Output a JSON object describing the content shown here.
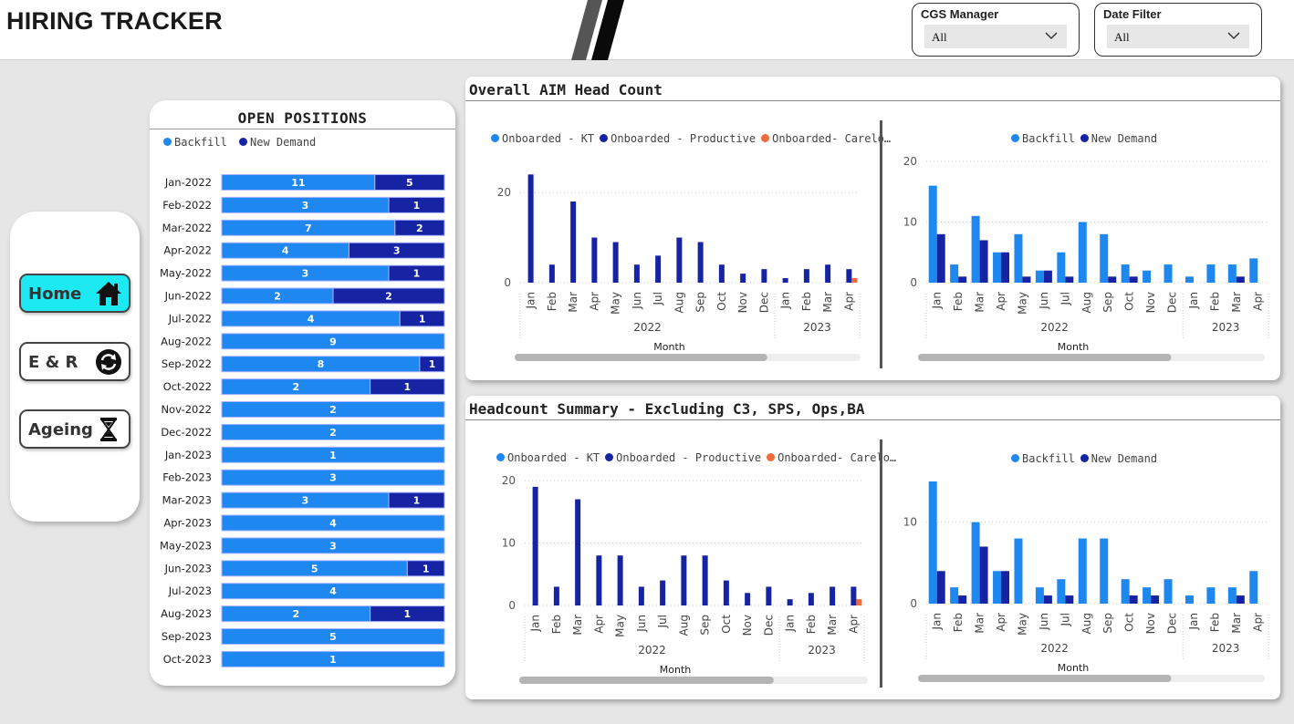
{
  "header": {
    "title": "HIRING TRACKER"
  },
  "filters": [
    {
      "label": "CGS Manager",
      "value": "All"
    },
    {
      "label": "Date Filter",
      "value": "All"
    }
  ],
  "nav": {
    "items": [
      {
        "label": "Home",
        "icon": "home-icon",
        "active": true
      },
      {
        "label": "E & R",
        "icon": "refresh-icon",
        "active": false
      },
      {
        "label": "Ageing",
        "icon": "hourglass-icon",
        "active": false
      }
    ]
  },
  "colors": {
    "backfill": "#1e88f0",
    "new_demand": "#1624a3",
    "carelon": "#f06b3a",
    "cyan": "#1de9f2"
  },
  "open_positions": {
    "title": "OPEN POSITIONS",
    "legend": [
      "Backfill",
      "New Demand"
    ]
  },
  "panels": {
    "overall": {
      "title": "Overall AIM Head Count"
    },
    "summary": {
      "title": "Headcount Summary - Excluding C3, SPS, Ops,BA"
    }
  },
  "chart_data": [
    {
      "type": "bar",
      "title": "OPEN POSITIONS",
      "stacked": true,
      "orientation": "horizontal",
      "categories": [
        "Jan-2022",
        "Feb-2022",
        "Mar-2022",
        "Apr-2022",
        "May-2022",
        "Jun-2022",
        "Jul-2022",
        "Aug-2022",
        "Sep-2022",
        "Oct-2022",
        "Nov-2022",
        "Dec-2022",
        "Jan-2023",
        "Feb-2023",
        "Mar-2023",
        "Apr-2023",
        "May-2023",
        "Jun-2023",
        "Jul-2023",
        "Aug-2023",
        "Sep-2023",
        "Oct-2023"
      ],
      "series": [
        {
          "name": "Backfill",
          "values": [
            11,
            3,
            7,
            4,
            3,
            2,
            4,
            9,
            8,
            2,
            2,
            2,
            1,
            3,
            3,
            4,
            3,
            5,
            4,
            2,
            5,
            1
          ]
        },
        {
          "name": "New Demand",
          "values": [
            5,
            1,
            2,
            3,
            1,
            2,
            1,
            0,
            1,
            1,
            0,
            0,
            0,
            0,
            1,
            0,
            0,
            1,
            0,
            1,
            0,
            0
          ]
        }
      ]
    },
    {
      "type": "bar",
      "panel": "Overall AIM Head Count",
      "legend": [
        "Onboarded - KT",
        "Onboarded - Productive",
        "Onboarded- Carelo…"
      ],
      "xlabel": "Month",
      "categories": [
        "Jan",
        "Feb",
        "Mar",
        "Apr",
        "May",
        "Jun",
        "Jul",
        "Aug",
        "Sep",
        "Oct",
        "Nov",
        "Dec",
        "Jan",
        "Feb",
        "Mar",
        "Apr"
      ],
      "years": [
        {
          "label": "2022",
          "span": 12
        },
        {
          "label": "2023",
          "span": 4
        }
      ],
      "yticks": [
        0,
        20
      ],
      "ylim": [
        0,
        27.5
      ],
      "series": [
        {
          "name": "Onboarded - KT",
          "values": [
            0,
            0,
            0,
            0,
            0,
            0,
            0,
            0,
            0,
            0,
            0,
            0,
            0,
            0,
            0,
            0
          ]
        },
        {
          "name": "Onboarded - Productive",
          "values": [
            24,
            4,
            18,
            10,
            9,
            4,
            6,
            10,
            9,
            4,
            2,
            3,
            1,
            3,
            4,
            3
          ]
        },
        {
          "name": "Onboarded- Carelo…",
          "values": [
            0,
            0,
            0,
            0,
            0,
            0,
            0,
            0,
            0,
            0,
            0,
            0,
            0,
            0,
            0,
            1
          ]
        }
      ]
    },
    {
      "type": "bar",
      "panel": "Overall AIM Head Count",
      "legend": [
        "Backfill",
        "New Demand"
      ],
      "xlabel": "Month",
      "categories": [
        "Jan",
        "Feb",
        "Mar",
        "Apr",
        "May",
        "Jun",
        "Jul",
        "Aug",
        "Sep",
        "Oct",
        "Nov",
        "Dec",
        "Jan",
        "Feb",
        "Mar",
        "Apr"
      ],
      "years": [
        {
          "label": "2022",
          "span": 12
        },
        {
          "label": "2023",
          "span": 4
        }
      ],
      "yticks": [
        0,
        10,
        20
      ],
      "ylim": [
        0,
        20
      ],
      "series": [
        {
          "name": "Backfill",
          "values": [
            16,
            3,
            11,
            5,
            8,
            2,
            5,
            10,
            8,
            3,
            2,
            3,
            1,
            3,
            3,
            4
          ]
        },
        {
          "name": "New Demand",
          "values": [
            8,
            1,
            7,
            5,
            1,
            2,
            1,
            0,
            1,
            1,
            0,
            0,
            0,
            0,
            1,
            0
          ]
        }
      ]
    },
    {
      "type": "bar",
      "panel": "Headcount Summary - Excluding C3, SPS, Ops,BA",
      "legend": [
        "Onboarded - KT",
        "Onboarded - Productive",
        "Onboarded- Carelo…"
      ],
      "xlabel": "Month",
      "categories": [
        "Jan",
        "Feb",
        "Mar",
        "Apr",
        "May",
        "Jun",
        "Jul",
        "Aug",
        "Sep",
        "Oct",
        "Nov",
        "Dec",
        "Jan",
        "Feb",
        "Mar",
        "Apr"
      ],
      "years": [
        {
          "label": "2022",
          "span": 12
        },
        {
          "label": "2023",
          "span": 4
        }
      ],
      "yticks": [
        0,
        10,
        20
      ],
      "ylim": [
        0,
        20
      ],
      "series": [
        {
          "name": "Onboarded - KT",
          "values": [
            0,
            0,
            0,
            0,
            0,
            0,
            0,
            0,
            0,
            0,
            0,
            0,
            0,
            0,
            0,
            0
          ]
        },
        {
          "name": "Onboarded - Productive",
          "values": [
            19,
            3,
            17,
            8,
            8,
            3,
            4,
            8,
            8,
            4,
            2,
            3,
            1,
            2,
            3,
            3
          ]
        },
        {
          "name": "Onboarded- Carelo…",
          "values": [
            0,
            0,
            0,
            0,
            0,
            0,
            0,
            0,
            0,
            0,
            0,
            0,
            0,
            0,
            0,
            1
          ]
        }
      ]
    },
    {
      "type": "bar",
      "panel": "Headcount Summary - Excluding C3, SPS, Ops,BA",
      "legend": [
        "Backfill",
        "New Demand"
      ],
      "xlabel": "Month",
      "categories": [
        "Jan",
        "Feb",
        "Mar",
        "Apr",
        "May",
        "Jun",
        "Jul",
        "Aug",
        "Sep",
        "Oct",
        "Nov",
        "Dec",
        "Jan",
        "Feb",
        "Mar",
        "Apr"
      ],
      "years": [
        {
          "label": "2022",
          "span": 12
        },
        {
          "label": "2023",
          "span": 4
        }
      ],
      "yticks": [
        0,
        10
      ],
      "ylim": [
        0,
        15
      ],
      "series": [
        {
          "name": "Backfill",
          "values": [
            15,
            2,
            10,
            4,
            8,
            2,
            3,
            8,
            8,
            3,
            2,
            3,
            1,
            2,
            2,
            4
          ]
        },
        {
          "name": "New Demand",
          "values": [
            4,
            1,
            7,
            4,
            0,
            1,
            1,
            0,
            0,
            1,
            1,
            0,
            0,
            0,
            1,
            0
          ]
        }
      ]
    }
  ]
}
